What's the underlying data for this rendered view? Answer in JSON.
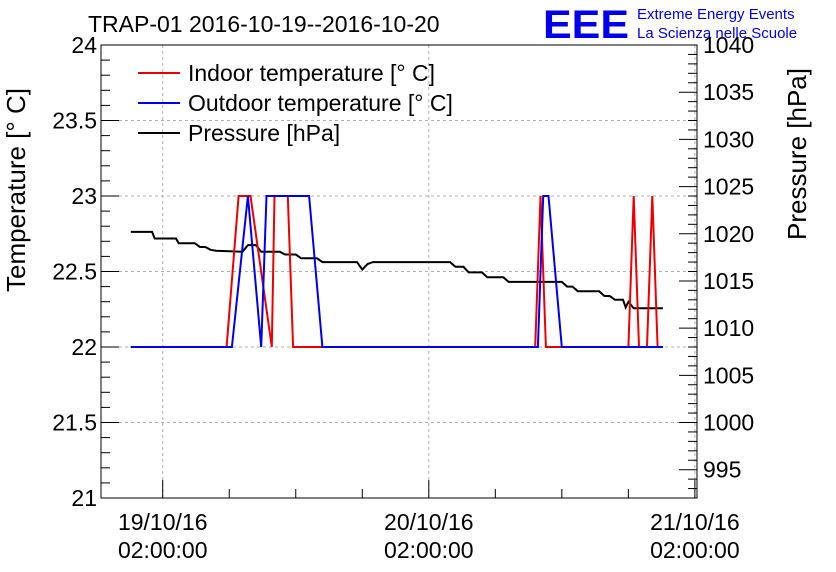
{
  "chart_data": {
    "type": "line",
    "title": "TRAP-01 2016-10-19--2016-10-20",
    "ylabel": "Temperature [° C]",
    "y2label": "Pressure [hPa]",
    "ylim": [
      21,
      24
    ],
    "y2lim": [
      992,
      1040
    ],
    "yticks": [
      21,
      21.5,
      22,
      22.5,
      23,
      23.5,
      24
    ],
    "ytick_labels": [
      "21",
      "21.5",
      "22",
      "22.5",
      "23",
      "23.5",
      "24"
    ],
    "y2ticks": [
      995,
      1000,
      1005,
      1010,
      1015,
      1020,
      1025,
      1030,
      1035,
      1040
    ],
    "y2tick_labels": [
      "995",
      "1000",
      "1005",
      "1010",
      "1015",
      "1020",
      "1025",
      "1030",
      "1035",
      "1040"
    ],
    "xlim": [
      -0.232,
      2.008
    ],
    "xticks": [
      0,
      1,
      2
    ],
    "xtick_labels": [
      {
        "date": "19/10/16",
        "time": "02:00:00"
      },
      {
        "date": "20/10/16",
        "time": "02:00:00"
      },
      {
        "date": "21/10/16",
        "time": "02:00:00"
      }
    ],
    "grid": true,
    "legend_position": "top-left",
    "series": [
      {
        "name": "Indoor temperature [° C]",
        "color": "#ee0000",
        "axis": "left",
        "x": [
          -0.12,
          0.24,
          0.285,
          0.33,
          0.41,
          0.42,
          0.43,
          0.47,
          0.49,
          1.4,
          1.42,
          1.44,
          1.46,
          1.75,
          1.77,
          1.79,
          1.81,
          1.82,
          1.84,
          1.86,
          1.88
        ],
        "y": [
          22,
          22,
          23,
          23,
          22,
          23,
          23,
          23,
          22,
          22,
          23,
          22,
          22,
          22,
          23,
          22,
          22,
          22,
          23,
          22,
          22
        ]
      },
      {
        "name": "Outdoor temperature [° C]",
        "color": "#0000ee",
        "axis": "left",
        "x": [
          -0.12,
          0.26,
          0.32,
          0.37,
          0.39,
          0.55,
          0.6,
          1.41,
          1.43,
          1.45,
          1.5,
          1.88
        ],
        "y": [
          22,
          22,
          23,
          22,
          23,
          23,
          22,
          22,
          23,
          23,
          22,
          22
        ],
        "mid_points": [
          [
            0.325,
            22.9
          ]
        ]
      },
      {
        "name": "Pressure [hPa]",
        "color": "#000000",
        "axis": "right",
        "x": [
          -0.12,
          -0.04,
          -0.03,
          0.05,
          0.06,
          0.12,
          0.14,
          0.16,
          0.18,
          0.2,
          0.3,
          0.32,
          0.35,
          0.37,
          0.44,
          0.46,
          0.5,
          0.52,
          0.58,
          0.6,
          0.73,
          0.75,
          0.77,
          0.79,
          1.08,
          1.1,
          1.13,
          1.15,
          1.2,
          1.22,
          1.28,
          1.3,
          1.4,
          1.42,
          1.43,
          1.45,
          1.47,
          1.49,
          1.5,
          1.52,
          1.54,
          1.56,
          1.64,
          1.66,
          1.68,
          1.7,
          1.73,
          1.74,
          1.75,
          1.77,
          1.8,
          1.84,
          1.88
        ],
        "y": [
          1020.2,
          1020.2,
          1019.5,
          1019.5,
          1019,
          1019,
          1018.6,
          1018.6,
          1018.3,
          1018.2,
          1018.1,
          1018.8,
          1018.8,
          1018.1,
          1018.1,
          1017.8,
          1017.8,
          1017.4,
          1017.4,
          1017,
          1017,
          1016.2,
          1016.8,
          1017,
          1017,
          1016.5,
          1016.5,
          1015.9,
          1015.9,
          1015.4,
          1015.4,
          1014.9,
          1014.9,
          1014.9,
          1014.9,
          1014.9,
          1014.9,
          1014.9,
          1014.9,
          1014.4,
          1014.4,
          1013.9,
          1013.9,
          1013.4,
          1013.4,
          1013,
          1013,
          1012.2,
          1012.8,
          1012.1,
          1012.1,
          1012.1,
          1012.1
        ]
      }
    ]
  },
  "logo": {
    "mark": "EEE",
    "line1": "Extreme Energy Events",
    "line2": "La Scienza nelle Scuole"
  }
}
